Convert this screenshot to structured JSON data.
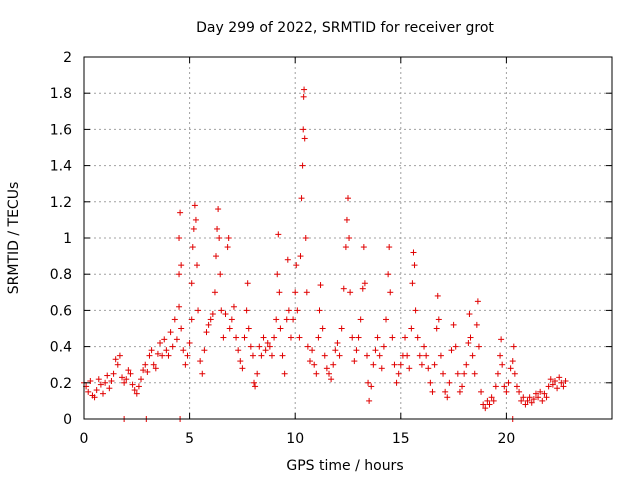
{
  "chart_data": {
    "type": "scatter",
    "title": "Day 299 of 2022, SRMTID for receiver grot",
    "xlabel": "GPS time / hours",
    "ylabel": "SRMTID / TECUs",
    "xlim": [
      0,
      25
    ],
    "ylim": [
      0,
      2
    ],
    "xticks": [
      0,
      5,
      10,
      15,
      20
    ],
    "xtick_labels": [
      "0",
      "5",
      "10",
      "15",
      "20"
    ],
    "yticks": [
      0,
      0.2,
      0.4,
      0.6,
      0.8,
      1,
      1.2,
      1.4,
      1.6,
      1.8,
      2
    ],
    "ytick_labels": [
      "0",
      "0.2",
      "0.4",
      "0.6",
      "0.8",
      "1",
      "1.2",
      "1.4",
      "1.6",
      "1.8",
      "2"
    ],
    "grid": true,
    "marker": "plus",
    "color": "#e00000",
    "series": [
      {
        "name": "SRMTID",
        "points": [
          [
            0.0,
            0.2
          ],
          [
            0.1,
            0.18
          ],
          [
            0.2,
            0.15
          ],
          [
            0.3,
            0.21
          ],
          [
            0.4,
            0.13
          ],
          [
            0.5,
            0.12
          ],
          [
            0.6,
            0.16
          ],
          [
            0.7,
            0.22
          ],
          [
            0.8,
            0.19
          ],
          [
            0.9,
            0.14
          ],
          [
            1.0,
            0.2
          ],
          [
            1.1,
            0.24
          ],
          [
            1.2,
            0.17
          ],
          [
            1.3,
            0.21
          ],
          [
            1.4,
            0.25
          ],
          [
            1.5,
            0.33
          ],
          [
            1.6,
            0.3
          ],
          [
            1.7,
            0.35
          ],
          [
            1.8,
            0.23
          ],
          [
            1.9,
            0.2
          ],
          [
            2.0,
            0.22
          ],
          [
            2.1,
            0.27
          ],
          [
            2.2,
            0.25
          ],
          [
            2.3,
            0.19
          ],
          [
            2.4,
            0.16
          ],
          [
            2.5,
            0.14
          ],
          [
            2.6,
            0.18
          ],
          [
            2.7,
            0.22
          ],
          [
            2.8,
            0.27
          ],
          [
            2.9,
            0.3
          ],
          [
            3.0,
            0.26
          ],
          [
            3.1,
            0.35
          ],
          [
            3.2,
            0.38
          ],
          [
            3.3,
            0.3
          ],
          [
            3.4,
            0.28
          ],
          [
            3.5,
            0.36
          ],
          [
            3.6,
            0.42
          ],
          [
            3.7,
            0.35
          ],
          [
            3.8,
            0.44
          ],
          [
            3.9,
            0.38
          ],
          [
            4.0,
            0.35
          ],
          [
            4.1,
            0.48
          ],
          [
            4.2,
            0.4
          ],
          [
            4.3,
            0.55
          ],
          [
            4.4,
            0.44
          ],
          [
            4.5,
            0.62
          ],
          [
            4.5,
            0.8
          ],
          [
            4.5,
            1.0
          ],
          [
            4.55,
            1.14
          ],
          [
            4.6,
            0.85
          ],
          [
            4.6,
            0.5
          ],
          [
            4.7,
            0.38
          ],
          [
            4.8,
            0.3
          ],
          [
            4.9,
            0.35
          ],
          [
            5.0,
            0.42
          ],
          [
            5.1,
            0.55
          ],
          [
            5.1,
            0.75
          ],
          [
            5.15,
            0.95
          ],
          [
            5.2,
            1.05
          ],
          [
            5.25,
            1.18
          ],
          [
            5.3,
            1.1
          ],
          [
            5.35,
            0.85
          ],
          [
            5.4,
            0.6
          ],
          [
            5.5,
            0.32
          ],
          [
            5.6,
            0.25
          ],
          [
            5.7,
            0.38
          ],
          [
            5.8,
            0.48
          ],
          [
            5.9,
            0.52
          ],
          [
            6.0,
            0.55
          ],
          [
            6.1,
            0.58
          ],
          [
            6.2,
            0.7
          ],
          [
            6.25,
            0.9
          ],
          [
            6.3,
            1.05
          ],
          [
            6.35,
            1.16
          ],
          [
            6.4,
            1.0
          ],
          [
            6.45,
            0.8
          ],
          [
            6.5,
            0.6
          ],
          [
            6.6,
            0.45
          ],
          [
            6.7,
            0.58
          ],
          [
            6.8,
            0.95
          ],
          [
            6.85,
            1.0
          ],
          [
            6.9,
            0.5
          ],
          [
            7.0,
            0.55
          ],
          [
            7.1,
            0.62
          ],
          [
            7.2,
            0.45
          ],
          [
            7.3,
            0.38
          ],
          [
            7.4,
            0.32
          ],
          [
            7.5,
            0.28
          ],
          [
            7.6,
            0.45
          ],
          [
            7.7,
            0.6
          ],
          [
            7.75,
            0.75
          ],
          [
            7.8,
            0.5
          ],
          [
            7.9,
            0.4
          ],
          [
            8.0,
            0.35
          ],
          [
            8.05,
            0.2
          ],
          [
            8.1,
            0.18
          ],
          [
            8.2,
            0.25
          ],
          [
            8.3,
            0.4
          ],
          [
            8.4,
            0.35
          ],
          [
            8.5,
            0.45
          ],
          [
            8.6,
            0.38
          ],
          [
            8.7,
            0.42
          ],
          [
            8.8,
            0.4
          ],
          [
            8.9,
            0.35
          ],
          [
            9.0,
            0.45
          ],
          [
            9.1,
            0.55
          ],
          [
            9.15,
            0.8
          ],
          [
            9.2,
            1.02
          ],
          [
            9.25,
            0.7
          ],
          [
            9.3,
            0.5
          ],
          [
            9.4,
            0.35
          ],
          [
            9.5,
            0.25
          ],
          [
            9.6,
            0.55
          ],
          [
            9.65,
            0.88
          ],
          [
            9.7,
            0.6
          ],
          [
            9.8,
            0.45
          ],
          [
            9.9,
            0.55
          ],
          [
            10.0,
            0.7
          ],
          [
            10.05,
            0.85
          ],
          [
            10.1,
            0.6
          ],
          [
            10.2,
            0.45
          ],
          [
            10.25,
            0.9
          ],
          [
            10.3,
            1.22
          ],
          [
            10.35,
            1.4
          ],
          [
            10.38,
            1.6
          ],
          [
            10.4,
            1.78
          ],
          [
            10.42,
            1.82
          ],
          [
            10.45,
            1.55
          ],
          [
            10.5,
            1.0
          ],
          [
            10.55,
            0.7
          ],
          [
            10.6,
            0.4
          ],
          [
            10.7,
            0.32
          ],
          [
            10.8,
            0.38
          ],
          [
            10.9,
            0.3
          ],
          [
            11.0,
            0.25
          ],
          [
            11.1,
            0.45
          ],
          [
            11.15,
            0.6
          ],
          [
            11.2,
            0.74
          ],
          [
            11.3,
            0.5
          ],
          [
            11.4,
            0.35
          ],
          [
            11.5,
            0.28
          ],
          [
            11.6,
            0.25
          ],
          [
            11.7,
            0.22
          ],
          [
            11.8,
            0.3
          ],
          [
            11.9,
            0.38
          ],
          [
            12.0,
            0.42
          ],
          [
            12.1,
            0.35
          ],
          [
            12.2,
            0.5
          ],
          [
            12.3,
            0.72
          ],
          [
            12.4,
            0.95
          ],
          [
            12.45,
            1.1
          ],
          [
            12.5,
            1.22
          ],
          [
            12.55,
            1.0
          ],
          [
            12.6,
            0.7
          ],
          [
            12.7,
            0.45
          ],
          [
            12.8,
            0.32
          ],
          [
            12.9,
            0.38
          ],
          [
            13.0,
            0.45
          ],
          [
            13.1,
            0.55
          ],
          [
            13.2,
            0.72
          ],
          [
            13.25,
            0.95
          ],
          [
            13.3,
            0.75
          ],
          [
            13.4,
            0.35
          ],
          [
            13.45,
            0.2
          ],
          [
            13.5,
            0.1
          ],
          [
            13.6,
            0.18
          ],
          [
            13.7,
            0.3
          ],
          [
            13.8,
            0.38
          ],
          [
            13.9,
            0.45
          ],
          [
            14.0,
            0.35
          ],
          [
            14.1,
            0.28
          ],
          [
            14.2,
            0.4
          ],
          [
            14.3,
            0.55
          ],
          [
            14.4,
            0.8
          ],
          [
            14.45,
            0.95
          ],
          [
            14.5,
            0.7
          ],
          [
            14.6,
            0.45
          ],
          [
            14.7,
            0.3
          ],
          [
            14.8,
            0.2
          ],
          [
            14.9,
            0.25
          ],
          [
            15.0,
            0.3
          ],
          [
            15.1,
            0.35
          ],
          [
            15.2,
            0.45
          ],
          [
            15.3,
            0.35
          ],
          [
            15.4,
            0.28
          ],
          [
            15.5,
            0.5
          ],
          [
            15.55,
            0.75
          ],
          [
            15.6,
            0.92
          ],
          [
            15.65,
            0.85
          ],
          [
            15.7,
            0.6
          ],
          [
            15.8,
            0.45
          ],
          [
            15.9,
            0.35
          ],
          [
            16.0,
            0.3
          ],
          [
            16.1,
            0.4
          ],
          [
            16.2,
            0.35
          ],
          [
            16.3,
            0.28
          ],
          [
            16.4,
            0.2
          ],
          [
            16.5,
            0.15
          ],
          [
            16.6,
            0.3
          ],
          [
            16.7,
            0.5
          ],
          [
            16.75,
            0.68
          ],
          [
            16.8,
            0.55
          ],
          [
            16.9,
            0.35
          ],
          [
            17.0,
            0.25
          ],
          [
            17.1,
            0.15
          ],
          [
            17.2,
            0.12
          ],
          [
            17.3,
            0.2
          ],
          [
            17.4,
            0.38
          ],
          [
            17.5,
            0.52
          ],
          [
            17.6,
            0.4
          ],
          [
            17.7,
            0.25
          ],
          [
            17.8,
            0.15
          ],
          [
            17.9,
            0.18
          ],
          [
            18.0,
            0.25
          ],
          [
            18.1,
            0.3
          ],
          [
            18.2,
            0.42
          ],
          [
            18.25,
            0.58
          ],
          [
            18.3,
            0.45
          ],
          [
            18.4,
            0.35
          ],
          [
            18.5,
            0.25
          ],
          [
            18.6,
            0.52
          ],
          [
            18.65,
            0.65
          ],
          [
            18.7,
            0.4
          ],
          [
            18.8,
            0.15
          ],
          [
            18.9,
            0.08
          ],
          [
            19.0,
            0.06
          ],
          [
            19.1,
            0.1
          ],
          [
            19.2,
            0.08
          ],
          [
            19.3,
            0.12
          ],
          [
            19.4,
            0.1
          ],
          [
            19.5,
            0.18
          ],
          [
            19.6,
            0.25
          ],
          [
            19.7,
            0.35
          ],
          [
            19.75,
            0.44
          ],
          [
            19.8,
            0.3
          ],
          [
            19.9,
            0.18
          ],
          [
            20.0,
            0.15
          ],
          [
            20.1,
            0.2
          ],
          [
            20.2,
            0.28
          ],
          [
            20.3,
            0.32
          ],
          [
            20.35,
            0.4
          ],
          [
            20.4,
            0.25
          ],
          [
            20.5,
            0.18
          ],
          [
            20.6,
            0.15
          ],
          [
            20.7,
            0.1
          ],
          [
            20.8,
            0.12
          ],
          [
            20.9,
            0.08
          ],
          [
            21.0,
            0.1
          ],
          [
            21.1,
            0.12
          ],
          [
            21.2,
            0.09
          ],
          [
            21.3,
            0.11
          ],
          [
            21.4,
            0.14
          ],
          [
            21.5,
            0.12
          ],
          [
            21.6,
            0.15
          ],
          [
            21.7,
            0.1
          ],
          [
            21.8,
            0.14
          ],
          [
            21.9,
            0.12
          ],
          [
            22.0,
            0.18
          ],
          [
            22.1,
            0.22
          ],
          [
            22.2,
            0.19
          ],
          [
            22.3,
            0.21
          ],
          [
            22.4,
            0.17
          ],
          [
            22.5,
            0.23
          ],
          [
            22.6,
            0.2
          ],
          [
            22.7,
            0.18
          ],
          [
            22.8,
            0.21
          ],
          [
            1.9,
            0.0
          ],
          [
            2.95,
            0.0
          ],
          [
            4.55,
            0.0
          ],
          [
            20.3,
            0.0
          ]
        ]
      }
    ]
  }
}
